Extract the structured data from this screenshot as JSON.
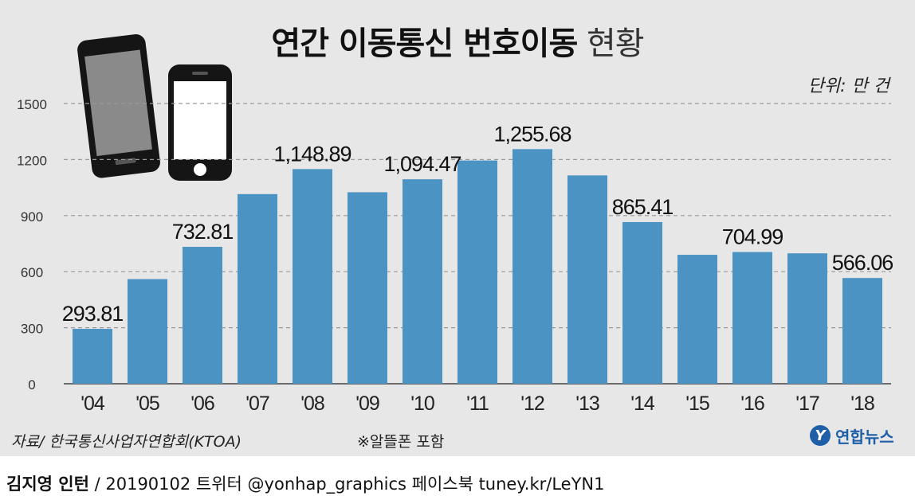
{
  "title_bold": "연간 이동통신 번호이동",
  "title_light": "현황",
  "unit_label": "단위: 만 건",
  "source": "자료/ 한국통신사업자연합회(KTOA)",
  "note": "※알뜰폰 포함",
  "logo_text": "연합뉴스",
  "logo_mark": "Y",
  "footer": {
    "author": "김지영 인턴",
    "rest": "/ 20190102 트위터 @yonhap_graphics  페이스북 tuney.kr/LeYN1"
  },
  "colors": {
    "bar": "#4a93c2",
    "panel": "#e7e7e7",
    "grid": "#9a9a9a"
  },
  "chart_data": {
    "type": "bar",
    "categories": [
      "'04",
      "'05",
      "'06",
      "'07",
      "'08",
      "'09",
      "'10",
      "'11",
      "'12",
      "'13",
      "'14",
      "'15",
      "'16",
      "'17",
      "'18"
    ],
    "values": [
      293.81,
      560,
      732.81,
      1015,
      1148.89,
      1025,
      1094.47,
      1195,
      1255.68,
      1115,
      865.41,
      690,
      704.99,
      698,
      566.06
    ],
    "data_labels": [
      "293.81",
      "",
      "732.81",
      "",
      "1,148.89",
      "",
      "1,094.47",
      "",
      "1,255.68",
      "",
      "865.41",
      "",
      "704.99",
      "",
      "566.06"
    ],
    "yticks": [
      "0",
      "300",
      "600",
      "900",
      "1200",
      "1500"
    ],
    "ylim": [
      0,
      1500
    ],
    "grid": true,
    "xlabel": "",
    "ylabel": ""
  }
}
